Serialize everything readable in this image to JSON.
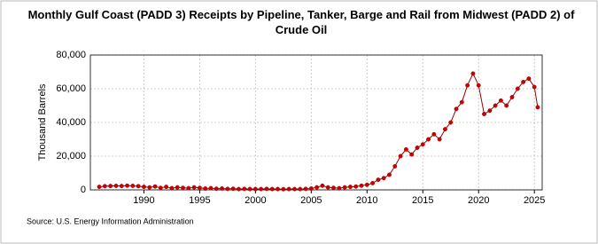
{
  "chart_data": {
    "type": "line",
    "title": "Monthly Gulf Coast (PADD 3) Receipts by Pipeline, Tanker, Barge and Rail from Midwest (PADD 2) of Crude Oil",
    "y_label": "Thousand Barrels",
    "source": "Source: U.S. Energy Information Administration",
    "x": [
      1986,
      1986.5,
      1987,
      1987.5,
      1988,
      1988.5,
      1989,
      1989.5,
      1990,
      1990.5,
      1991,
      1991.5,
      1992,
      1992.5,
      1993,
      1993.5,
      1994,
      1994.5,
      1995,
      1995.5,
      1996,
      1996.5,
      1997,
      1997.5,
      1998,
      1998.5,
      1999,
      1999.5,
      2000,
      2000.5,
      2001,
      2001.5,
      2002,
      2002.5,
      2003,
      2003.5,
      2004,
      2004.5,
      2005,
      2005.5,
      2006,
      2006.5,
      2007,
      2007.5,
      2008,
      2008.5,
      2009,
      2009.5,
      2010,
      2010.5,
      2011,
      2011.5,
      2012,
      2012.5,
      2013,
      2013.5,
      2014,
      2014.5,
      2015,
      2015.5,
      2016,
      2016.5,
      2017,
      2017.5,
      2018,
      2018.5,
      2019,
      2019.5,
      2020,
      2020.5,
      2021,
      2021.5,
      2022,
      2022.5,
      2023,
      2023.5,
      2024,
      2024.5,
      2025,
      2025.3
    ],
    "series": [
      {
        "name": "Receipts",
        "color": "#cc0000",
        "values": [
          1800,
          2200,
          2300,
          2400,
          2300,
          2500,
          2400,
          2200,
          1800,
          1500,
          2000,
          1200,
          1800,
          1000,
          1500,
          1200,
          1000,
          1500,
          1200,
          800,
          1000,
          700,
          800,
          600,
          700,
          500,
          600,
          500,
          500,
          500,
          600,
          500,
          500,
          400,
          500,
          500,
          500,
          600,
          800,
          1500,
          2500,
          1500,
          1200,
          1000,
          1500,
          1800,
          2000,
          2500,
          3000,
          4000,
          6000,
          7000,
          9000,
          14000,
          20000,
          24000,
          21000,
          25000,
          27000,
          30000,
          33000,
          30000,
          36000,
          40000,
          48000,
          52000,
          62000,
          69000,
          62000,
          45000,
          47000,
          50000,
          53000,
          50000,
          55000,
          60000,
          64000,
          66000,
          61000,
          49000
        ]
      }
    ],
    "xlim": [
      1985.2,
      2025.7
    ],
    "xticks": [
      1990,
      1995,
      2000,
      2005,
      2010,
      2015,
      2020,
      2025
    ],
    "ylim": [
      0,
      80000
    ],
    "yticks": [
      0,
      {
        "value": 20000,
        "label": "20,000"
      },
      {
        "value": 40000,
        "label": "40,000"
      },
      {
        "value": 60000,
        "label": "60,000"
      },
      {
        "value": 80000,
        "label": "80,000"
      }
    ],
    "grid": true
  }
}
